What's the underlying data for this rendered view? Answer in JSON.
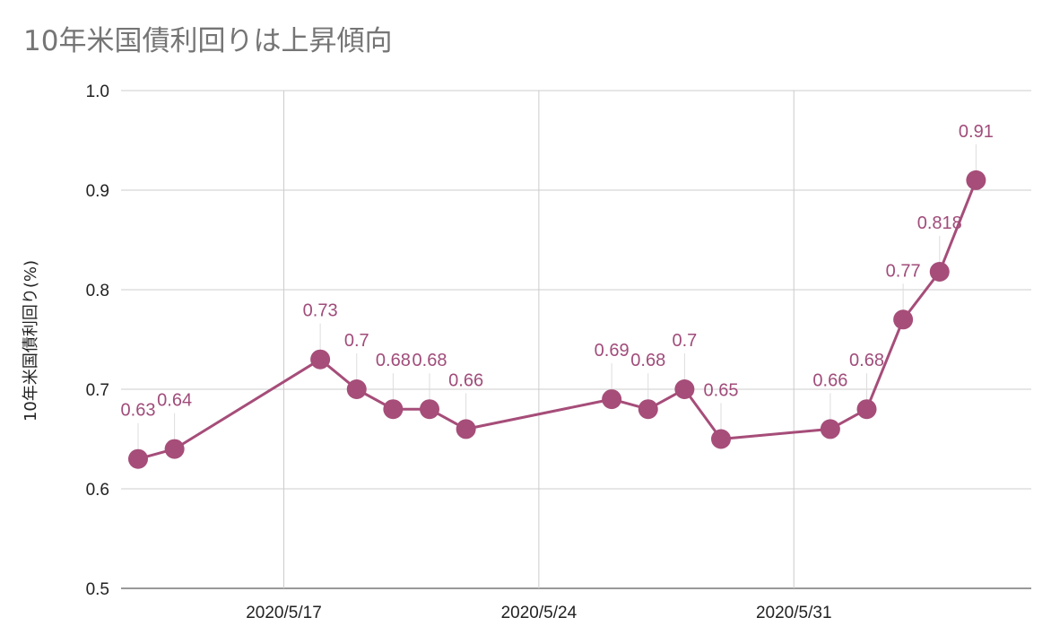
{
  "chart_data": {
    "type": "line",
    "title": "10年米国債利回りは上昇傾向",
    "xlabel": "",
    "ylabel": "10年米国債利回り(%)",
    "ylim": [
      0.5,
      1.0
    ],
    "yticks": [
      "0.5",
      "0.6",
      "0.7",
      "0.8",
      "0.9",
      "1.0"
    ],
    "x_range": [
      "2020-05-13",
      "2020-06-06"
    ],
    "xticks": [
      {
        "date": "2020-05-17",
        "label": "2020/5/17"
      },
      {
        "date": "2020-05-24",
        "label": "2020/5/24"
      },
      {
        "date": "2020-05-31",
        "label": "2020/5/31"
      }
    ],
    "grid": true,
    "color": "#a64d79",
    "series": [
      {
        "points": [
          {
            "date": "2020-05-13",
            "value": 0.63,
            "label": "0.63"
          },
          {
            "date": "2020-05-14",
            "value": 0.64,
            "label": "0.64"
          },
          {
            "date": "2020-05-18",
            "value": 0.73,
            "label": "0.73"
          },
          {
            "date": "2020-05-19",
            "value": 0.7,
            "label": "0.7"
          },
          {
            "date": "2020-05-20",
            "value": 0.68,
            "label": "0.68"
          },
          {
            "date": "2020-05-21",
            "value": 0.68,
            "label": "0.68"
          },
          {
            "date": "2020-05-22",
            "value": 0.66,
            "label": "0.66"
          },
          {
            "date": "2020-05-26",
            "value": 0.69,
            "label": "0.69"
          },
          {
            "date": "2020-05-27",
            "value": 0.68,
            "label": "0.68"
          },
          {
            "date": "2020-05-28",
            "value": 0.7,
            "label": "0.7"
          },
          {
            "date": "2020-05-29",
            "value": 0.65,
            "label": "0.65"
          },
          {
            "date": "2020-06-01",
            "value": 0.66,
            "label": "0.66"
          },
          {
            "date": "2020-06-02",
            "value": 0.68,
            "label": "0.68"
          },
          {
            "date": "2020-06-03",
            "value": 0.77,
            "label": "0.77"
          },
          {
            "date": "2020-06-04",
            "value": 0.818,
            "label": "0.818"
          },
          {
            "date": "2020-06-05",
            "value": 0.91,
            "label": "0.91"
          }
        ]
      }
    ]
  }
}
